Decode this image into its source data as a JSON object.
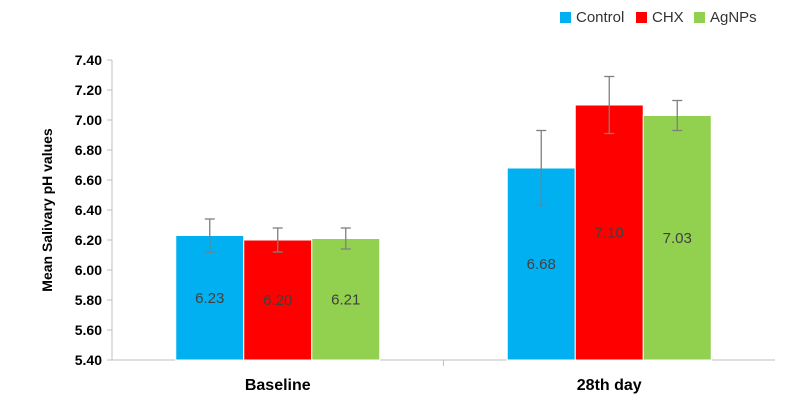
{
  "chart_data": {
    "type": "bar",
    "title": "",
    "xlabel": "",
    "ylabel": "Mean Salivary pH values",
    "categories": [
      "Baseline",
      "28th day"
    ],
    "ylim": [
      5.4,
      7.4
    ],
    "yticks": [
      "5.40",
      "5.60",
      "5.80",
      "6.00",
      "6.20",
      "6.40",
      "6.60",
      "6.80",
      "7.00",
      "7.20",
      "7.40"
    ],
    "legend_position": "top-right",
    "grid": false,
    "series": [
      {
        "name": "Control",
        "color": "#00B0F0",
        "values": [
          6.23,
          6.68
        ],
        "labels": [
          "6.23",
          "6.68"
        ],
        "error": [
          0.11,
          0.25
        ]
      },
      {
        "name": "CHX",
        "color": "#FF0000",
        "values": [
          6.2,
          7.1
        ],
        "labels": [
          "6.20",
          "7.10"
        ],
        "error": [
          0.08,
          0.19
        ]
      },
      {
        "name": "AgNPs",
        "color": "#92D050",
        "values": [
          6.21,
          7.03
        ],
        "labels": [
          "6.21",
          "7.03"
        ],
        "error": [
          0.07,
          0.1
        ]
      }
    ]
  }
}
